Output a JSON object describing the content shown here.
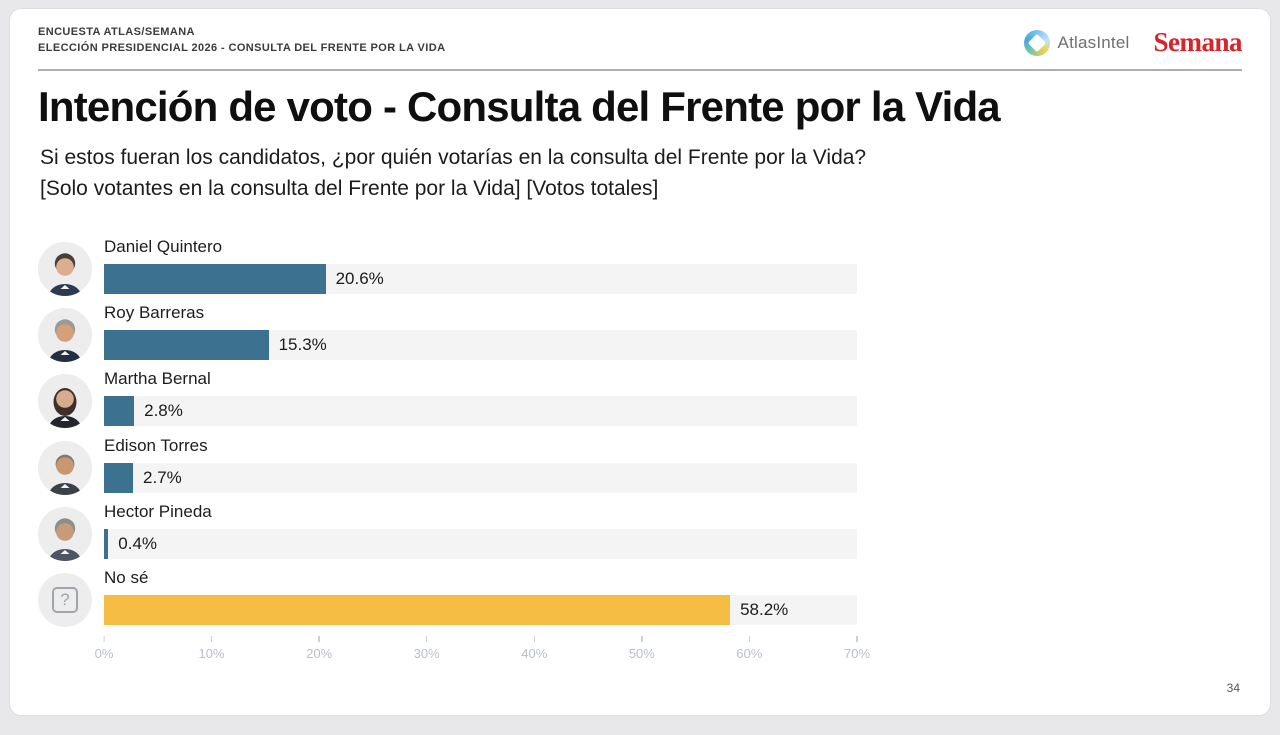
{
  "header": {
    "kicker_line1": "ENCUESTA ATLAS/SEMANA",
    "kicker_line2": "ELECCIÓN PRESIDENCIAL 2026 - CONSULTA DEL FRENTE POR LA VIDA",
    "atlasintel_label": "AtlasIntel",
    "semana_label": "Semana"
  },
  "main": {
    "title": "Intención de voto - Consulta del Frente por la Vida",
    "subtitle_line1": "Si estos fueran los candidatos, ¿por quién votarías en la consulta del Frente por la Vida?",
    "subtitle_line2": "[Solo votantes en la consulta del Frente por la Vida] [Votos totales]"
  },
  "chart_data": {
    "type": "bar",
    "orientation": "horizontal",
    "title": "Intención de voto - Consulta del Frente por la Vida",
    "xlabel": "",
    "ylabel": "",
    "xlim": [
      0,
      70
    ],
    "x_ticks": [
      "0%",
      "10%",
      "20%",
      "30%",
      "40%",
      "50%",
      "60%",
      "70%"
    ],
    "grid": false,
    "legend": "none",
    "categories": [
      "Daniel Quintero",
      "Roy Barreras",
      "Martha Bernal",
      "Edison Torres",
      "Hector Pineda",
      "No sé"
    ],
    "values": [
      20.6,
      15.3,
      2.8,
      2.7,
      0.4,
      58.2
    ],
    "value_labels": [
      "20.6%",
      "15.3%",
      "2.8%",
      "2.7%",
      "0.4%",
      "58.2%"
    ],
    "bar_colors": [
      "#3c7190",
      "#3c7190",
      "#3c7190",
      "#3c7190",
      "#3c7190",
      "#f6bd45"
    ],
    "track_color": "#f4f4f4",
    "avatars": [
      {
        "icon": "candidate-photo",
        "style": "short",
        "hair": "#4a3f38",
        "skin": "#dcae91",
        "clothes": "#2c3950"
      },
      {
        "icon": "candidate-photo",
        "style": "short",
        "hair": "#9a9a98",
        "skin": "#d3a079",
        "clothes": "#232e41"
      },
      {
        "icon": "candidate-photo",
        "style": "long",
        "hair": "#3e2f2c",
        "skin": "#d8ab8f",
        "clothes": "#22252e"
      },
      {
        "icon": "candidate-photo",
        "style": "balding",
        "hair": "#7d7a74",
        "skin": "#c99871",
        "clothes": "#3a4149"
      },
      {
        "icon": "candidate-photo",
        "style": "short",
        "hair": "#8f8d89",
        "skin": "#c79a78",
        "clothes": "#4b5563"
      },
      {
        "icon": "question-mark",
        "glyph": "?"
      }
    ]
  },
  "footer": {
    "page_number": "34"
  },
  "colors": {
    "bar_teal": "#3c7190",
    "bar_yellow": "#f6bd45",
    "semana_red": "#d9232a",
    "page_background": "#e8e8ea"
  }
}
